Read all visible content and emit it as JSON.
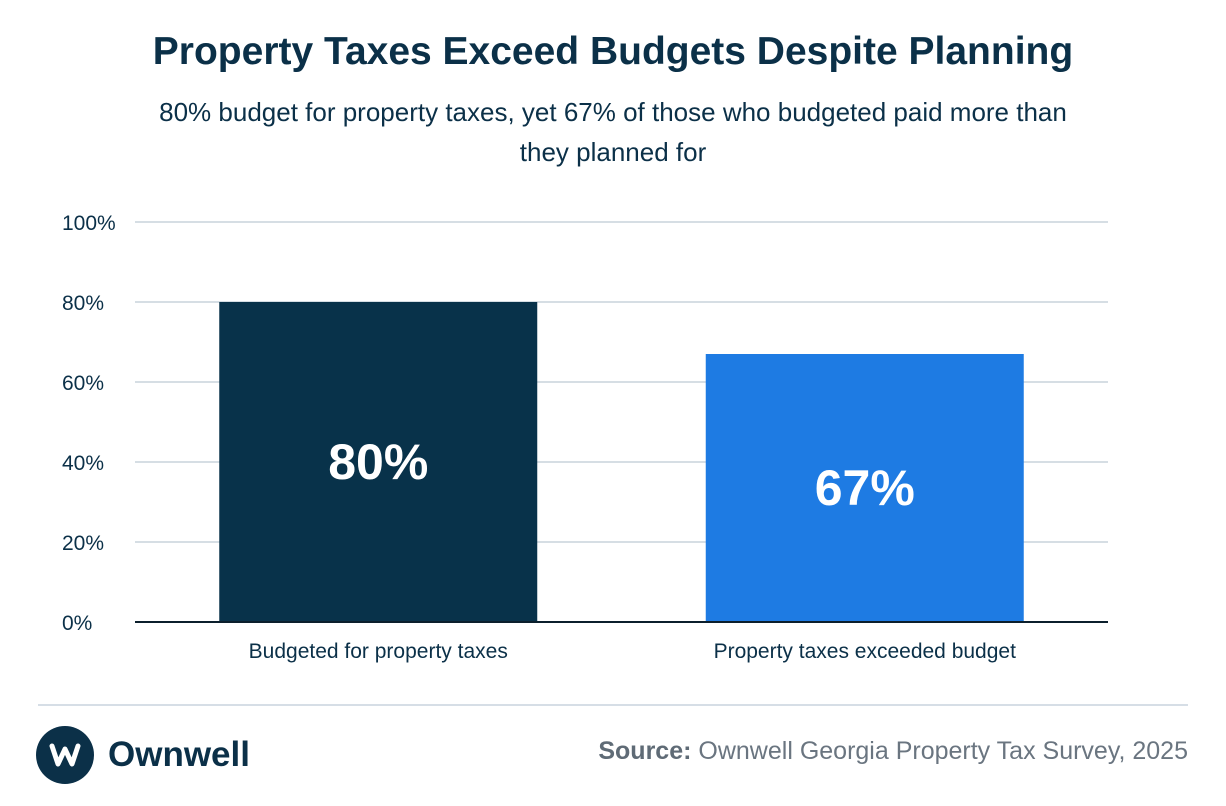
{
  "title": "Property Taxes Exceed Budgets Despite Planning",
  "subtitle": "80% budget for property taxes, yet 67% of those who budgeted paid more than they planned for",
  "chart_data": {
    "type": "bar",
    "categories": [
      "Budgeted for property taxes",
      "Property taxes exceeded budget"
    ],
    "values": [
      80,
      67
    ],
    "data_labels": [
      "80%",
      "67%"
    ],
    "colors": [
      "#08324a",
      "#1e7be3"
    ],
    "ylim": [
      0,
      100
    ],
    "yticks": [
      0,
      20,
      40,
      60,
      80,
      100
    ],
    "ytick_labels": [
      "0%",
      "20%",
      "40%",
      "60%",
      "80%",
      "100%"
    ],
    "grid": true,
    "xlabel": "",
    "ylabel": ""
  },
  "footer": {
    "brand": "Ownwell",
    "source_label": "Source:",
    "source_text": " Ownwell Georgia Property Tax Survey, 2025"
  }
}
